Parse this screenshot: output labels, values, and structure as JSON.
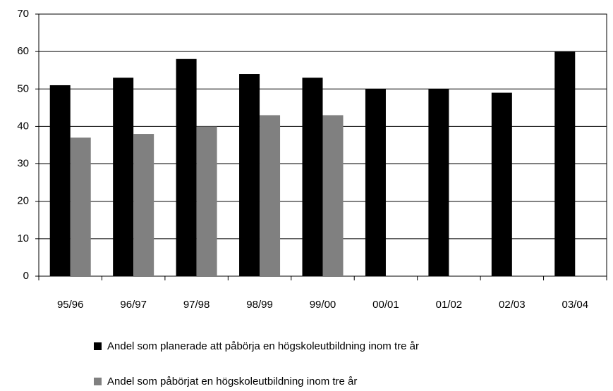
{
  "chart_data": {
    "type": "bar",
    "categories": [
      "95/96",
      "96/97",
      "97/98",
      "98/99",
      "99/00",
      "00/01",
      "01/02",
      "02/03",
      "03/04"
    ],
    "series": [
      {
        "name": "Andel som planerade att påbörja en högskoleutbildning inom tre år",
        "color": "#000000",
        "values": [
          51,
          53,
          58,
          54,
          53,
          50,
          50,
          49,
          60
        ]
      },
      {
        "name": "Andel som påbörjat en högskoleutbildning inom tre år",
        "color": "#808080",
        "values": [
          37,
          38,
          40,
          43,
          43,
          null,
          null,
          null,
          null
        ]
      }
    ],
    "ylim": [
      0,
      70
    ],
    "yticks": [
      0,
      10,
      20,
      30,
      40,
      50,
      60,
      70
    ],
    "grid": true,
    "legend": "bottom"
  }
}
